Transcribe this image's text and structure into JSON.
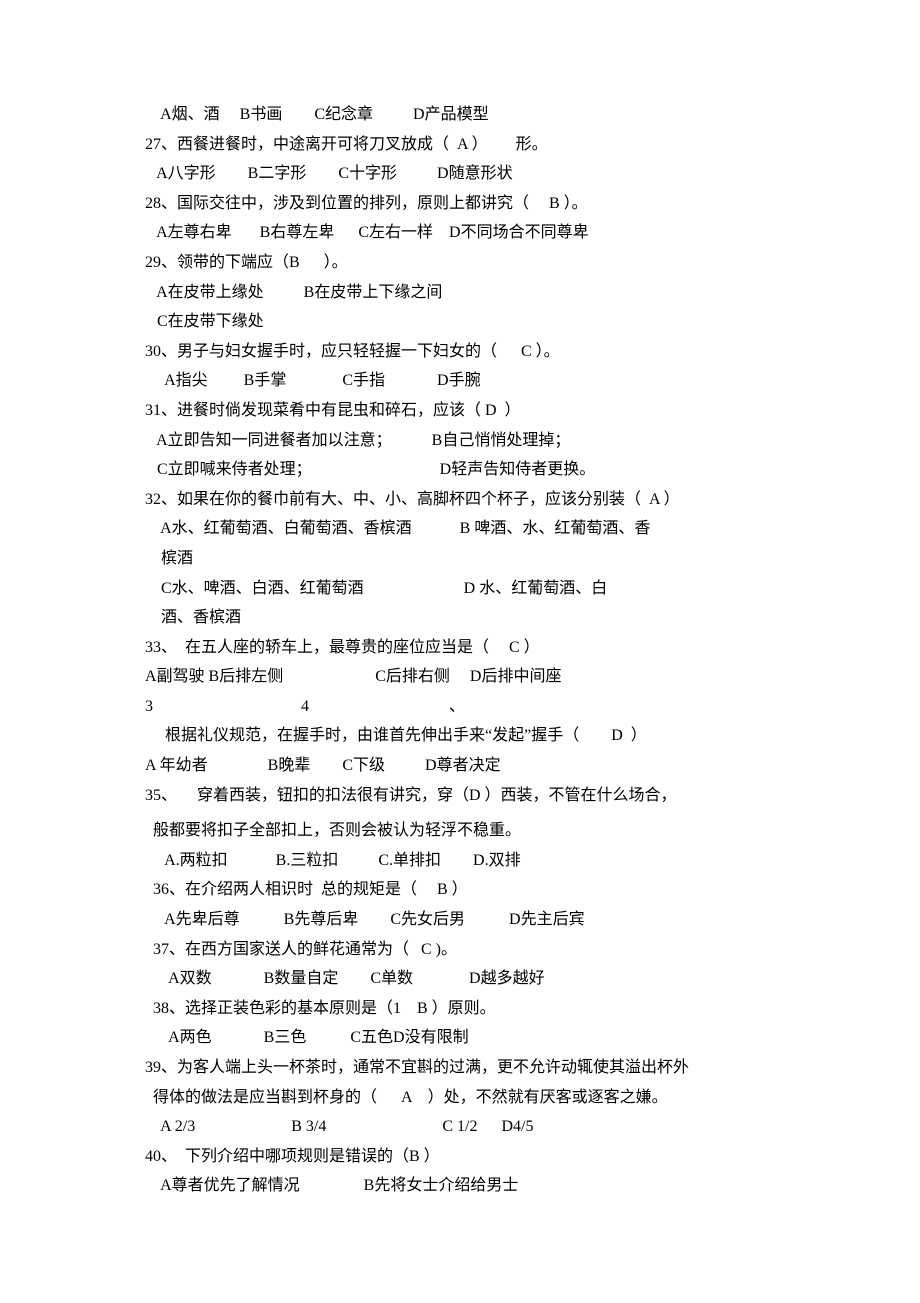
{
  "background_color": "#ffffff",
  "text_color": "#000000",
  "font_family": "SimSun",
  "font_size": 16,
  "small_font_size": 5,
  "lines": [
    {
      "t": "    A烟、酒     B书画        C纪念章          D产品模型"
    },
    {
      "t": "27、西餐进餐时，中途离开可将刀叉放成（  A ）       形。"
    },
    {
      "t": "   A八字形        B二字形        C十字形          D随意形状"
    },
    {
      "t": "28、国际交往中，涉及到位置的排列，原则上都讲究（     B ）。"
    },
    {
      "t": "   A左尊右卑       B右尊左卑      C左右一样    D不同场合不同尊卑"
    },
    {
      "t": "29、领带的下端应（B      ）。"
    },
    {
      "t": "   A在皮带上缘处          B在皮带上下缘之间"
    },
    {
      "t": "   C在皮带下缘处"
    },
    {
      "t": "30、男子与妇女握手时，应只轻轻握一下妇女的（      C ）。"
    },
    {
      "t": "     A指尖         B手掌              C手指             D手腕"
    },
    {
      "t": "31、进餐时倘发现菜肴中有昆虫和碎石，应该（ D  ）"
    },
    {
      "t": "   A立即告知一同进餐者加以注意；          B自己悄悄处理掉；"
    },
    {
      "t": "   C立即喊来侍者处理；                                D轻声告知侍者更换。"
    },
    {
      "t": "32、如果在你的餐巾前有大、中、小、高脚杯四个杯子，应该分别装（  A ）"
    },
    {
      "t": "    A水、红葡萄酒、白葡萄酒、香槟酒            B 啤酒、水、红葡萄酒、香"
    },
    {
      "t": "    槟酒"
    },
    {
      "t": "    C水、啤酒、白酒、红葡萄酒                         D 水、红葡萄酒、白"
    },
    {
      "t": "    酒、香槟酒"
    },
    {
      "t": "33、  在五人座的轿车上，最尊贵的座位应当是（     C ）"
    },
    {
      "t": "A副驾驶 B后排左侧                       C后排右侧     D后排中间座"
    },
    {
      "t": "3                                     4                                   、"
    },
    {
      "t": "     根据礼仪规范，在握手时，由谁首先伸出手来“发起”握手（        D  ）"
    },
    {
      "t": "A 年幼者               B晚辈        C下级          D尊者决定"
    },
    {
      "t": "35、     穿着西装，钮扣的扣法很有讲究，穿（D ）西装，不管在什么场合，"
    },
    {
      "t": "",
      "small": true
    },
    {
      "t": "  般都要将扣子全部扣上，否则会被认为轻浮不稳重。"
    },
    {
      "t": "     A.两粒扣            B.三粒扣          C.单排扣        D.双排"
    },
    {
      "t": "  36、在介绍两人相识时  总的规矩是（     B ）"
    },
    {
      "t": "     A先卑后尊           B先尊后卑        C先女后男           D先主后宾"
    },
    {
      "t": "  37、在西方国家送人的鲜花通常为（   C )。"
    },
    {
      "t": "      A双数             B数量自定        C单数              D越多越好"
    },
    {
      "t": "  38、选择正装色彩的基本原则是（1    B ）原则。"
    },
    {
      "t": "      A两色             B三色           C五色D没有限制"
    },
    {
      "t": "39、为客人端上头一杯茶时，通常不宜斟的过满，更不允许动辄使其溢出杯外"
    },
    {
      "t": "  得体的做法是应当斟到杯身的（      A    ）处，不然就有厌客或逐客之嫌。"
    },
    {
      "t": "    A 2/3                        B 3/4                             C 1/2      D4/5"
    },
    {
      "t": "40、  下列介绍中哪项规则是错误的（B ）"
    },
    {
      "t": "    A尊者优先了解情况                B先将女士介绍给男士"
    }
  ]
}
